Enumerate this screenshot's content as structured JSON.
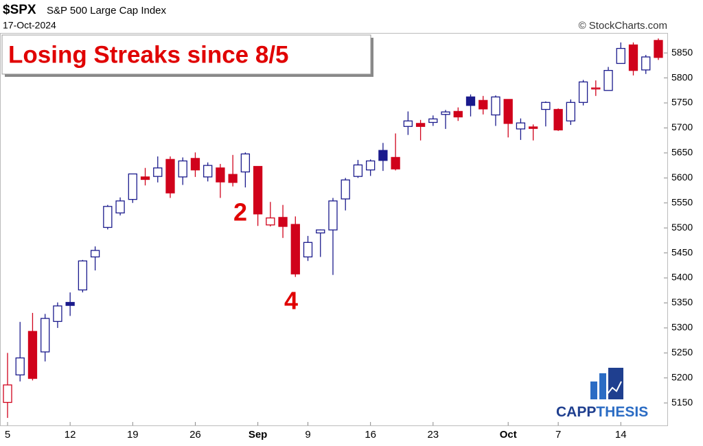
{
  "chart_data": {
    "type": "candlestick",
    "symbol": "$SPX",
    "title": "S&P 500 Large Cap Index",
    "date": "17-Oct-2024",
    "source": "© StockCharts.com",
    "headline": "Losing Streaks since 8/5",
    "annotations": [
      "2",
      "4"
    ],
    "logo": [
      "CAPP",
      "THESIS"
    ],
    "categories": [
      "5",
      null,
      null,
      null,
      null,
      "12",
      null,
      null,
      null,
      null,
      "19",
      null,
      null,
      null,
      null,
      "26",
      null,
      null,
      null,
      null,
      "Sep",
      null,
      null,
      null,
      "9",
      null,
      null,
      null,
      null,
      "16",
      null,
      null,
      null,
      null,
      "23",
      null,
      null,
      null,
      null,
      null,
      "Oct",
      null,
      null,
      null,
      "7",
      null,
      null,
      null,
      null,
      "14",
      null,
      null,
      null
    ],
    "series": [
      {
        "open": [
          5151,
          5206,
          5293,
          5252,
          5313,
          5351,
          5376,
          5442,
          5501,
          5530,
          5557,
          5602,
          5603,
          5637,
          5602,
          5639,
          5602,
          5620,
          5607,
          5612,
          5623,
          5506,
          5521,
          5507,
          5442,
          5490,
          5496,
          5558,
          5603,
          5616,
          5655,
          5641,
          5703,
          5709,
          5711,
          5727,
          5733,
          5762,
          5755,
          5726,
          5757,
          5698,
          5702,
          5737,
          5737,
          5714,
          5751,
          5778,
          5775,
          5829,
          5866,
          5816,
          5875
        ],
        "high": [
          5250,
          5312,
          5330,
          5328,
          5351,
          5371,
          5436,
          5463,
          5546,
          5561,
          5608,
          5620,
          5643,
          5643,
          5641,
          5651,
          5631,
          5628,
          5646,
          5651,
          5623,
          5552,
          5546,
          5523,
          5484,
          5497,
          5560,
          5600,
          5636,
          5637,
          5670,
          5689,
          5733,
          5716,
          5725,
          5736,
          5741,
          5767,
          5764,
          5765,
          5757,
          5719,
          5707,
          5753,
          5739,
          5757,
          5796,
          5795,
          5822,
          5871,
          5871,
          5846,
          5879
        ],
        "low": [
          5120,
          5193,
          5195,
          5233,
          5300,
          5324,
          5371,
          5415,
          5497,
          5525,
          5550,
          5585,
          5591,
          5560,
          5586,
          5602,
          5593,
          5560,
          5583,
          5581,
          5504,
          5503,
          5480,
          5402,
          5434,
          5442,
          5406,
          5535,
          5600,
          5604,
          5614,
          5615,
          5686,
          5675,
          5704,
          5698,
          5714,
          5723,
          5727,
          5704,
          5681,
          5676,
          5675,
          5703,
          5694,
          5706,
          5745,
          5764,
          5775,
          5829,
          5805,
          5808,
          5836
        ],
        "close": [
          5186,
          5240,
          5199,
          5319,
          5344,
          5345,
          5434,
          5455,
          5543,
          5554,
          5608,
          5597,
          5620,
          5570,
          5634,
          5616,
          5625,
          5592,
          5591,
          5648,
          5528,
          5520,
          5503,
          5408,
          5471,
          5496,
          5554,
          5596,
          5626,
          5634,
          5635,
          5618,
          5714,
          5703,
          5718,
          5732,
          5722,
          5745,
          5738,
          5762,
          5709,
          5710,
          5699,
          5751,
          5696,
          5751,
          5792,
          5780,
          5815,
          5859,
          5815,
          5842,
          5841
        ],
        "colors": [
          "#d0021b",
          "#1a1a8c",
          "#d0021b",
          "#1a1a8c",
          "#1a1a8c",
          "#1a1a8c",
          "#1a1a8c",
          "#1a1a8c",
          "#1a1a8c",
          "#1a1a8c",
          "#1a1a8c",
          "#d0021b",
          "#1a1a8c",
          "#d0021b",
          "#1a1a8c",
          "#d0021b",
          "#1a1a8c",
          "#d0021b",
          "#d0021b",
          "#1a1a8c",
          "#d0021b",
          "#d0021b",
          "#d0021b",
          "#d0021b",
          "#1a1a8c",
          "#1a1a8c",
          "#1a1a8c",
          "#1a1a8c",
          "#1a1a8c",
          "#1a1a8c",
          "#1a1a8c",
          "#d0021b",
          "#1a1a8c",
          "#d0021b",
          "#1a1a8c",
          "#1a1a8c",
          "#d0021b",
          "#1a1a8c",
          "#d0021b",
          "#1a1a8c",
          "#d0021b",
          "#1a1a8c",
          "#d0021b",
          "#1a1a8c",
          "#d0021b",
          "#1a1a8c",
          "#1a1a8c",
          "#d0021b",
          "#1a1a8c",
          "#1a1a8c",
          "#d0021b",
          "#1a1a8c",
          "#d0021b"
        ]
      }
    ],
    "ylim": [
      5105,
      5890
    ],
    "yticks": [
      5150,
      5200,
      5250,
      5300,
      5350,
      5400,
      5450,
      5500,
      5550,
      5600,
      5650,
      5700,
      5750,
      5800,
      5850
    ]
  }
}
